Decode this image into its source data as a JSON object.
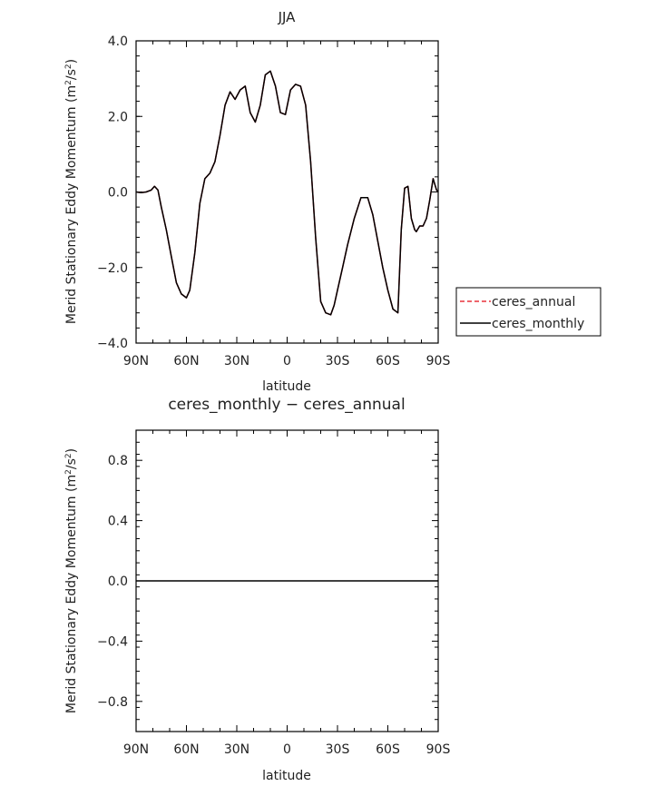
{
  "chart_data": [
    {
      "type": "line",
      "title": "JJA",
      "xlabel": "latitude",
      "ylabel_parts": [
        "Merid Stationary Eddy Momentum (m",
        "2",
        "/s",
        "2",
        ")"
      ],
      "xlim": [
        90,
        -90
      ],
      "ylim": [
        -4.0,
        4.0
      ],
      "x_ticks": [
        90,
        60,
        30,
        0,
        -30,
        -60,
        -90
      ],
      "x_tick_labels": [
        "90N",
        "60N",
        "30N",
        "0",
        "30S",
        "60S",
        "90S"
      ],
      "y_ticks": [
        -4.0,
        -2.0,
        0.0,
        2.0,
        4.0
      ],
      "y_tick_labels": [
        "−4.0",
        "−2.0",
        "0.0",
        "2.0",
        "4.0"
      ],
      "legend": {
        "placement": "right",
        "entries": [
          {
            "label": "ceres_annual",
            "color": "#e8323c",
            "dash": "dashed"
          },
          {
            "label": "ceres_monthly",
            "color": "#000000",
            "dash": "solid"
          }
        ]
      },
      "series": [
        {
          "name": "ceres_annual",
          "color": "#e8323c",
          "x": [
            90,
            87,
            84,
            81,
            79,
            77,
            75,
            72,
            69,
            66,
            63,
            60,
            58,
            55,
            52,
            49,
            46,
            43,
            40,
            37,
            34,
            31,
            28,
            25,
            22,
            19,
            16,
            13,
            10,
            7,
            4,
            1,
            -2,
            -5,
            -8,
            -11,
            -14,
            -17,
            -20,
            -23,
            -26,
            -28,
            -30,
            -33,
            -36,
            -40,
            -44,
            -48,
            -51,
            -54,
            -57,
            -60,
            -63,
            -66,
            -68,
            -70,
            -72,
            -74,
            -76,
            -77,
            -79,
            -81,
            -83,
            -85,
            -87,
            -88,
            -89,
            -90
          ],
          "y": [
            0.0,
            -0.02,
            0.0,
            0.05,
            0.15,
            0.05,
            -0.4,
            -1.0,
            -1.7,
            -2.4,
            -2.7,
            -2.8,
            -2.6,
            -1.6,
            -0.3,
            0.35,
            0.5,
            0.8,
            1.5,
            2.3,
            2.65,
            2.45,
            2.7,
            2.8,
            2.1,
            1.85,
            2.3,
            3.1,
            3.2,
            2.8,
            2.1,
            2.05,
            2.7,
            2.85,
            2.8,
            2.3,
            0.8,
            -1.2,
            -2.9,
            -3.2,
            -3.25,
            -3.0,
            -2.6,
            -2.0,
            -1.4,
            -0.7,
            -0.15,
            -0.15,
            -0.6,
            -1.3,
            -2.0,
            -2.6,
            -3.1,
            -3.2,
            -1.0,
            0.1,
            0.15,
            -0.7,
            -1.0,
            -1.05,
            -0.9,
            -0.9,
            -0.7,
            -0.2,
            0.35,
            0.2,
            0.05,
            0.0
          ]
        },
        {
          "name": "ceres_monthly",
          "color": "#000000",
          "x": [
            90,
            87,
            84,
            81,
            79,
            77,
            75,
            72,
            69,
            66,
            63,
            60,
            58,
            55,
            52,
            49,
            46,
            43,
            40,
            37,
            34,
            31,
            28,
            25,
            22,
            19,
            16,
            13,
            10,
            7,
            4,
            1,
            -2,
            -5,
            -8,
            -11,
            -14,
            -17,
            -20,
            -23,
            -26,
            -28,
            -30,
            -33,
            -36,
            -40,
            -44,
            -48,
            -51,
            -54,
            -57,
            -60,
            -63,
            -66,
            -68,
            -70,
            -72,
            -74,
            -76,
            -77,
            -79,
            -81,
            -83,
            -85,
            -87,
            -88,
            -89,
            -90
          ],
          "y": [
            0.0,
            -0.02,
            0.0,
            0.05,
            0.15,
            0.05,
            -0.4,
            -1.0,
            -1.7,
            -2.4,
            -2.7,
            -2.8,
            -2.6,
            -1.6,
            -0.3,
            0.35,
            0.5,
            0.8,
            1.5,
            2.3,
            2.65,
            2.45,
            2.7,
            2.8,
            2.1,
            1.85,
            2.3,
            3.1,
            3.2,
            2.8,
            2.1,
            2.05,
            2.7,
            2.85,
            2.8,
            2.3,
            0.8,
            -1.2,
            -2.9,
            -3.2,
            -3.25,
            -3.0,
            -2.6,
            -2.0,
            -1.4,
            -0.7,
            -0.15,
            -0.15,
            -0.6,
            -1.3,
            -2.0,
            -2.6,
            -3.1,
            -3.2,
            -1.0,
            0.1,
            0.15,
            -0.7,
            -1.0,
            -1.05,
            -0.9,
            -0.9,
            -0.7,
            -0.2,
            0.35,
            0.2,
            0.05,
            0.0
          ]
        }
      ]
    },
    {
      "type": "line",
      "title": "ceres_monthly − ceres_annual",
      "xlabel": "latitude",
      "ylabel_parts": [
        "Merid Stationary Eddy Momentum (m",
        "2",
        "/s",
        "2",
        ")"
      ],
      "xlim": [
        90,
        -90
      ],
      "ylim": [
        -1.0,
        1.0
      ],
      "x_ticks": [
        90,
        60,
        30,
        0,
        -30,
        -60,
        -90
      ],
      "x_tick_labels": [
        "90N",
        "60N",
        "30N",
        "0",
        "30S",
        "60S",
        "90S"
      ],
      "y_ticks": [
        -0.8,
        -0.4,
        0.0,
        0.4,
        0.8
      ],
      "y_tick_labels": [
        "−0.8",
        "−0.4",
        "0.0",
        "0.4",
        "0.8"
      ],
      "series": [
        {
          "color": "#000000",
          "x": [
            90,
            -90
          ],
          "y": [
            0.0,
            0.0
          ]
        }
      ]
    }
  ]
}
